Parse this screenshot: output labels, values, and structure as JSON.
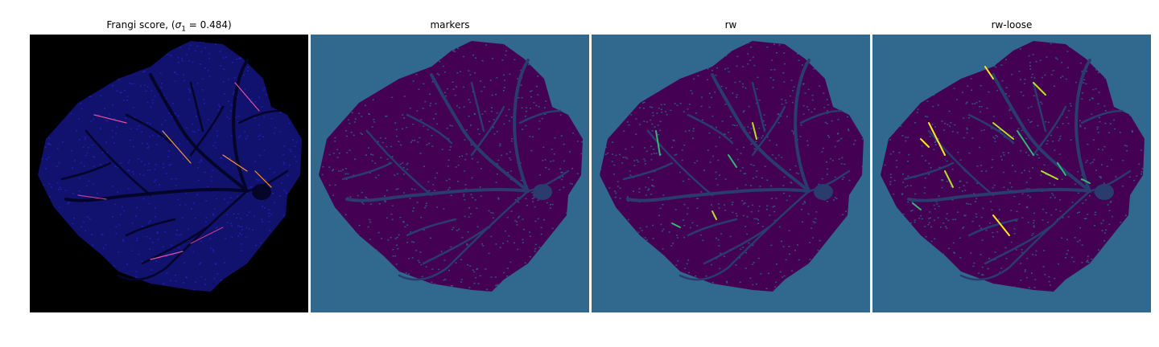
{
  "figure": {
    "panels": [
      {
        "title_prefix": "Frangi score, (",
        "title_sym": "σ",
        "title_sub": "1",
        "title_suffix": " = 0.484)",
        "background": "#000000",
        "fill": "#11116e",
        "vessel": "#05052a",
        "speckle": "#2a2ad8",
        "highlights": [
          "#e0529c",
          "#f29a3a",
          "#c23b8a"
        ]
      },
      {
        "title": "markers",
        "background": "#31688e",
        "fill": "#440154",
        "vessel": "#2a3b6e",
        "speckle": "#31688e",
        "highlights": []
      },
      {
        "title": "rw",
        "background": "#31688e",
        "fill": "#440154",
        "vessel": "#2a3b6e",
        "speckle": "#31688e",
        "highlights": [
          "#35b779",
          "#b5de2b"
        ]
      },
      {
        "title": "rw-loose",
        "background": "#31688e",
        "fill": "#440154",
        "vessel": "#2a3b6e",
        "speckle": "#31688e",
        "highlights": [
          "#fde725",
          "#b5de2b",
          "#35b779"
        ]
      }
    ]
  }
}
